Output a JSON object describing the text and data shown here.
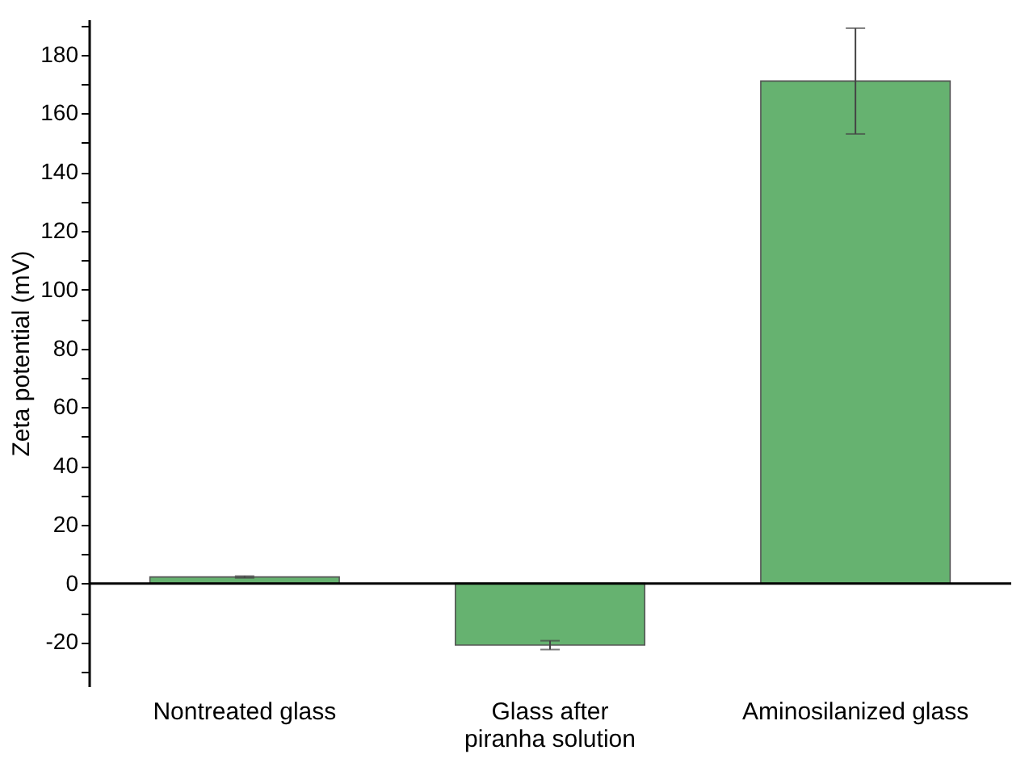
{
  "chart_data": {
    "type": "bar",
    "ylabel": "Zeta potential (mV)",
    "categories": [
      "Nontreated glass",
      "Glass after\npiranha solution",
      "Aminosilanized glass"
    ],
    "values": [
      2.2,
      -21,
      171
    ],
    "errors": [
      0.3,
      1.5,
      18
    ],
    "color": "#66b270",
    "ylim": [
      -35,
      192
    ],
    "yticks": [
      {
        "value": -30,
        "label": null
      },
      -20,
      {
        "value": -10,
        "label": null
      },
      0,
      {
        "value": 10,
        "label": null
      },
      20,
      {
        "value": 30,
        "label": null
      },
      40,
      {
        "value": 50,
        "label": null
      },
      60,
      {
        "value": 70,
        "label": null
      },
      80,
      {
        "value": 90,
        "label": null
      },
      100,
      {
        "value": 110,
        "label": null
      },
      120,
      {
        "value": 130,
        "label": null
      },
      140,
      {
        "value": 150,
        "label": null
      },
      160,
      {
        "value": 170,
        "label": null
      },
      180,
      {
        "value": 190,
        "label": null
      }
    ],
    "ref_lines": [
      {
        "axis": "y",
        "value": 0,
        "color": "#000000"
      }
    ],
    "grid": false
  }
}
